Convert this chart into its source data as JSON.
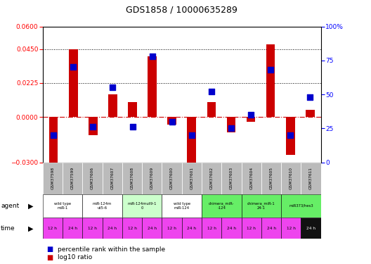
{
  "title": "GDS1858 / 10000635289",
  "samples": [
    "GSM37598",
    "GSM37599",
    "GSM37606",
    "GSM37607",
    "GSM37608",
    "GSM37609",
    "GSM37600",
    "GSM37601",
    "GSM37602",
    "GSM37603",
    "GSM37604",
    "GSM37605",
    "GSM37610",
    "GSM37611"
  ],
  "log10_ratio": [
    -0.033,
    0.045,
    -0.012,
    0.015,
    0.01,
    0.04,
    -0.005,
    -0.038,
    0.01,
    -0.01,
    -0.003,
    0.048,
    -0.025,
    0.005
  ],
  "percentile_rank": [
    20,
    70,
    26,
    55,
    26,
    78,
    30,
    20,
    52,
    25,
    35,
    68,
    20,
    48
  ],
  "ylim_left": [
    -0.03,
    0.06
  ],
  "ylim_right": [
    0,
    100
  ],
  "yticks_left": [
    -0.03,
    0,
    0.0225,
    0.045,
    0.06
  ],
  "yticks_right": [
    0,
    25,
    50,
    75,
    100
  ],
  "hlines": [
    0.0225,
    0.045
  ],
  "bar_color": "#cc0000",
  "dot_color": "#0000cc",
  "agent_groups": [
    {
      "label": "wild type\nmiR-1",
      "color": "#ffffff",
      "span": [
        0,
        2
      ]
    },
    {
      "label": "miR-124m\nut5-6",
      "color": "#ffffff",
      "span": [
        2,
        4
      ]
    },
    {
      "label": "miR-124mut9-1\n0",
      "color": "#ccffcc",
      "span": [
        4,
        6
      ]
    },
    {
      "label": "wild type\nmiR-124",
      "color": "#ffffff",
      "span": [
        6,
        8
      ]
    },
    {
      "label": "chimera_miR-\n-124",
      "color": "#66ee66",
      "span": [
        8,
        10
      ]
    },
    {
      "label": "chimera_miR-1\n24-1",
      "color": "#66ee66",
      "span": [
        10,
        12
      ]
    },
    {
      "label": "miR373/hes3",
      "color": "#66ee66",
      "span": [
        12,
        14
      ]
    }
  ],
  "time_labels": [
    "12 h",
    "24 h",
    "12 h",
    "24 h",
    "12 h",
    "24 h",
    "12 h",
    "24 h",
    "12 h",
    "24 h",
    "12 h",
    "24 h",
    "12 h",
    "24 h"
  ],
  "time_colors": [
    "#ee44ee",
    "#ee44ee",
    "#ee44ee",
    "#ee44ee",
    "#ee44ee",
    "#ee44ee",
    "#ee44ee",
    "#ee44ee",
    "#ee44ee",
    "#ee44ee",
    "#ee44ee",
    "#ee44ee",
    "#ee44ee",
    "#111111"
  ],
  "time_text_colors": [
    "#000000",
    "#000000",
    "#000000",
    "#000000",
    "#000000",
    "#000000",
    "#000000",
    "#000000",
    "#000000",
    "#000000",
    "#000000",
    "#000000",
    "#000000",
    "#ffffff"
  ],
  "gsm_bg": "#bbbbbb"
}
